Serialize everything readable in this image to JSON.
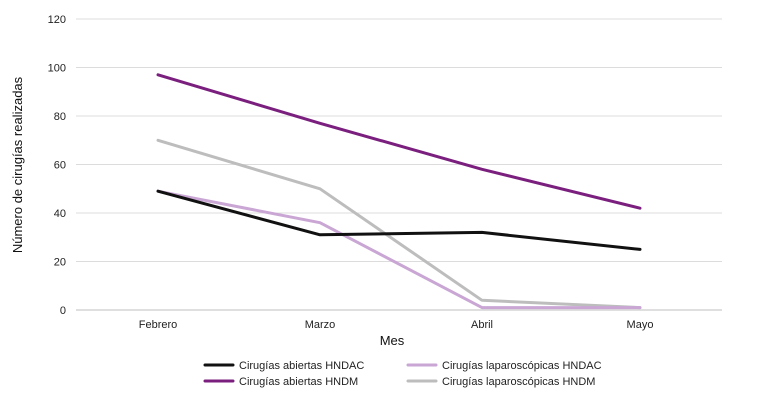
{
  "chart_data": {
    "type": "line",
    "title": "",
    "xlabel": "Mes",
    "ylabel": "Número de cirugías realizadas",
    "categories": [
      "Febrero",
      "Marzo",
      "Abril",
      "Mayo"
    ],
    "ylim": [
      0,
      120
    ],
    "yticks": [
      0,
      20,
      40,
      60,
      80,
      100,
      120
    ],
    "grid": true,
    "legend_position": "bottom",
    "series": [
      {
        "name": "Cirugías abiertas HNDAC",
        "values": [
          49,
          31,
          32,
          25
        ],
        "color": "#111111"
      },
      {
        "name": "Cirugías abiertas HNDM",
        "values": [
          97,
          77,
          58,
          42
        ],
        "color": "#7b1f7f"
      },
      {
        "name": "Cirugías laparoscópicas HNDAC",
        "values": [
          49,
          36,
          1,
          1
        ],
        "color": "#c9a6d4"
      },
      {
        "name": "Cirugías laparoscópicas HNDM",
        "values": [
          70,
          50,
          4,
          1
        ],
        "color": "#bdbdbd"
      }
    ]
  }
}
